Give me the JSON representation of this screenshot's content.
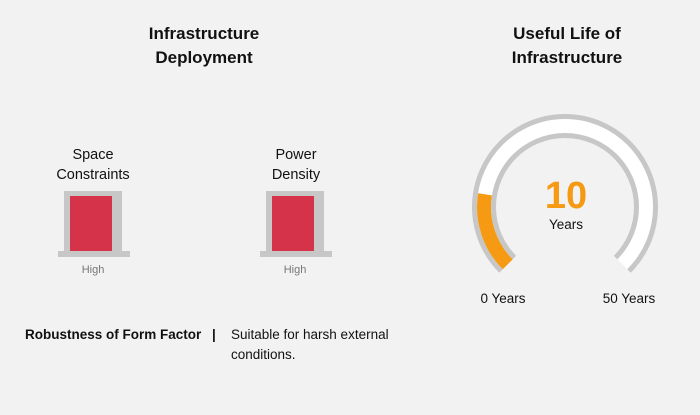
{
  "deployment": {
    "title": "Infrastructure\nDeployment",
    "indicators": [
      {
        "label": "Space\nConstraints",
        "level": "High"
      },
      {
        "label": "Power\nDensity",
        "level": "High"
      }
    ],
    "robustness": {
      "label": "Robustness of Form Factor",
      "separator": "|",
      "value": "Suitable for harsh external conditions."
    }
  },
  "useful_life": {
    "title": "Useful Life of\nInfrastructure",
    "value": 10,
    "value_text": "10",
    "unit": "Years",
    "min": 0,
    "max": 50,
    "min_label": "0 Years",
    "max_label": "50 Years"
  },
  "colors": {
    "indicator_fill": "#d5334a",
    "gauge_fill": "#f59a12",
    "gauge_track": "#c7c7c7",
    "gauge_track_inner": "#ffffff"
  }
}
